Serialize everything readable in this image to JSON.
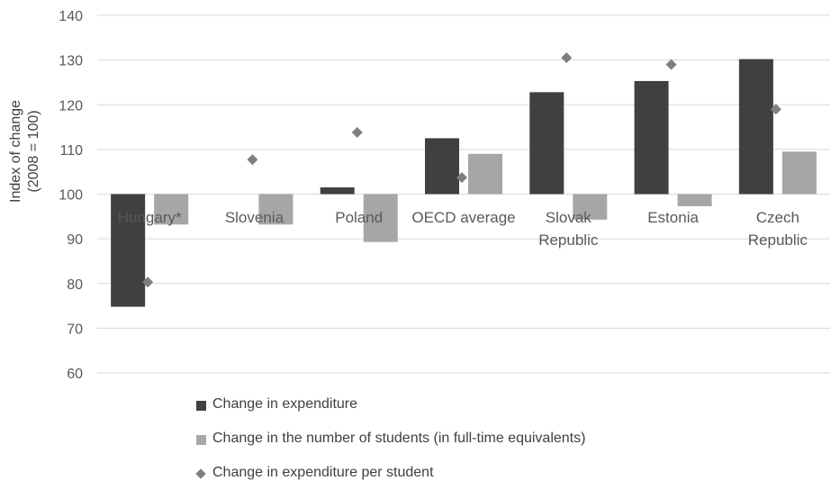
{
  "chart_data": {
    "type": "bar",
    "title": "",
    "xlabel": "",
    "ylabel": [
      "Index of change",
      "(2008 = 100)"
    ],
    "ylim": [
      60,
      140
    ],
    "yticks": [
      60,
      70,
      80,
      90,
      100,
      110,
      120,
      130,
      140
    ],
    "baseline": 100,
    "grid": true,
    "legend_position": "bottom",
    "categories": [
      [
        "Hungary*"
      ],
      [
        "Slovenia"
      ],
      [
        "Poland"
      ],
      [
        "OECD average"
      ],
      [
        "Slovak",
        "Republic"
      ],
      [
        "Estonia"
      ],
      [
        "Czech",
        "Republic"
      ]
    ],
    "series": [
      {
        "name": "Change in expenditure",
        "type": "bar",
        "color": "#404040",
        "values": [
          74.8,
          null,
          101.5,
          112.5,
          122.8,
          125.3,
          130.2
        ]
      },
      {
        "name": "Change in the number of students (in full-time equivalents)",
        "type": "bar",
        "color": "#a6a6a6",
        "values": [
          93.2,
          93.2,
          89.3,
          109.0,
          94.3,
          97.3,
          109.5
        ]
      },
      {
        "name": "Change in expenditure per student",
        "type": "marker",
        "marker": "diamond",
        "color": "#7f7f7f",
        "values": [
          80.3,
          107.7,
          113.8,
          103.7,
          130.5,
          129.0,
          119.0
        ]
      }
    ]
  }
}
